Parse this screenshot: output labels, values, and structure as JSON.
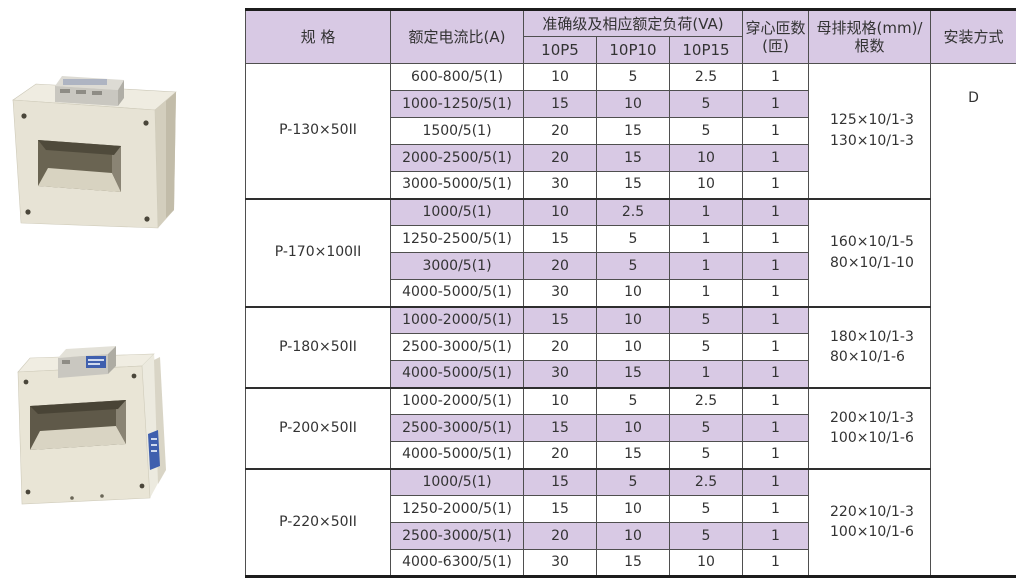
{
  "colors": {
    "shade_lavender": "#d8c9e4",
    "grid_line": "#4f4f4f",
    "outer_line": "#1c1c1c",
    "text": "#333333",
    "ct_body_beige": "#e7e3d5",
    "label_blue": "#3f5fae"
  },
  "photos": {
    "top": "current-transformer-product-photo",
    "bottom": "current-transformer-product-photo-wide"
  },
  "table": {
    "headers": {
      "spec": "规 格",
      "ratio": "额定电流比(A)",
      "accuracy_group": "准确级及相应额定负荷(VA)",
      "accuracy_cols": [
        "10P5",
        "10P10",
        "10P15"
      ],
      "turns": "穿心匝数(匝)",
      "busbar": "母排规格(mm)/根数",
      "mounting": "安装方式"
    },
    "mounting_value": "D",
    "groups": [
      {
        "spec": "P-130×50II",
        "busbar": [
          "125×10/1-3",
          "130×10/1-3"
        ],
        "rows": [
          {
            "ratio": "600-800/5(1)",
            "p5": "10",
            "p10": "5",
            "p15": "2.5",
            "turns": "1"
          },
          {
            "ratio": "1000-1250/5(1)",
            "p5": "15",
            "p10": "10",
            "p15": "5",
            "turns": "1"
          },
          {
            "ratio": "1500/5(1)",
            "p5": "20",
            "p10": "15",
            "p15": "5",
            "turns": "1"
          },
          {
            "ratio": "2000-2500/5(1)",
            "p5": "20",
            "p10": "15",
            "p15": "10",
            "turns": "1"
          },
          {
            "ratio": "3000-5000/5(1)",
            "p5": "30",
            "p10": "15",
            "p15": "10",
            "turns": "1"
          }
        ]
      },
      {
        "spec": "P-170×100II",
        "busbar": [
          "160×10/1-5",
          "80×10/1-10"
        ],
        "rows": [
          {
            "ratio": "1000/5(1)",
            "p5": "10",
            "p10": "2.5",
            "p15": "1",
            "turns": "1"
          },
          {
            "ratio": "1250-2500/5(1)",
            "p5": "15",
            "p10": "5",
            "p15": "1",
            "turns": "1"
          },
          {
            "ratio": "3000/5(1)",
            "p5": "20",
            "p10": "5",
            "p15": "1",
            "turns": "1"
          },
          {
            "ratio": "4000-5000/5(1)",
            "p5": "30",
            "p10": "10",
            "p15": "1",
            "turns": "1"
          }
        ]
      },
      {
        "spec": "P-180×50II",
        "busbar": [
          "180×10/1-3",
          "80×10/1-6"
        ],
        "rows": [
          {
            "ratio": "1000-2000/5(1)",
            "p5": "15",
            "p10": "10",
            "p15": "5",
            "turns": "1"
          },
          {
            "ratio": "2500-3000/5(1)",
            "p5": "20",
            "p10": "10",
            "p15": "5",
            "turns": "1"
          },
          {
            "ratio": "4000-5000/5(1)",
            "p5": "30",
            "p10": "15",
            "p15": "1",
            "turns": "1"
          }
        ]
      },
      {
        "spec": "P-200×50II",
        "busbar": [
          "200×10/1-3",
          "100×10/1-6"
        ],
        "rows": [
          {
            "ratio": "1000-2000/5(1)",
            "p5": "10",
            "p10": "5",
            "p15": "2.5",
            "turns": "1"
          },
          {
            "ratio": "2500-3000/5(1)",
            "p5": "15",
            "p10": "10",
            "p15": "5",
            "turns": "1"
          },
          {
            "ratio": "4000-5000/5(1)",
            "p5": "20",
            "p10": "15",
            "p15": "5",
            "turns": "1"
          }
        ]
      },
      {
        "spec": "P-220×50II",
        "busbar": [
          "220×10/1-3",
          "100×10/1-6"
        ],
        "rows": [
          {
            "ratio": "1000/5(1)",
            "p5": "15",
            "p10": "5",
            "p15": "2.5",
            "turns": "1"
          },
          {
            "ratio": "1250-2000/5(1)",
            "p5": "15",
            "p10": "10",
            "p15": "5",
            "turns": "1"
          },
          {
            "ratio": "2500-3000/5(1)",
            "p5": "20",
            "p10": "10",
            "p15": "5",
            "turns": "1"
          },
          {
            "ratio": "4000-6300/5(1)",
            "p5": "30",
            "p10": "15",
            "p15": "10",
            "turns": "1"
          }
        ]
      }
    ]
  }
}
